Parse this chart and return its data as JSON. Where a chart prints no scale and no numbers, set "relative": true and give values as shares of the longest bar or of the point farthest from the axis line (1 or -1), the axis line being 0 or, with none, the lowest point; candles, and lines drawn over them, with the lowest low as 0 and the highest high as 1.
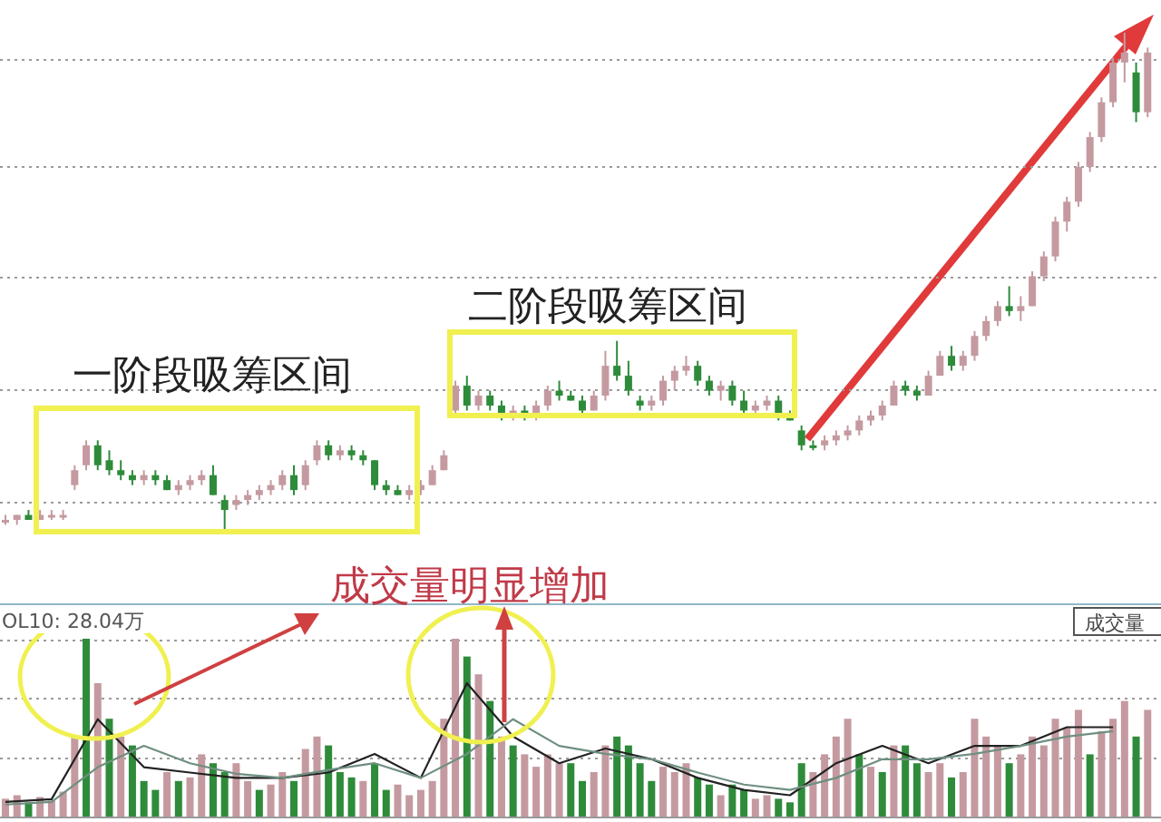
{
  "chart_data": [
    {
      "type": "candlestick",
      "relative": true,
      "categories": [
        null,
        null,
        null,
        null,
        null,
        null,
        null,
        null,
        null,
        null,
        null,
        null,
        null,
        null,
        null,
        null,
        null,
        null,
        null,
        null,
        null,
        null,
        null,
        null,
        null,
        null,
        null,
        null,
        null,
        null,
        null,
        null,
        null,
        null,
        null,
        null,
        null,
        null,
        null,
        null,
        null,
        null,
        null,
        null,
        null,
        null,
        null,
        null,
        null,
        null,
        null,
        null,
        null,
        null,
        null,
        null,
        null,
        null,
        null,
        null,
        null,
        null,
        null,
        null,
        null,
        null,
        null,
        null,
        null,
        null,
        null,
        null,
        null,
        null,
        null,
        null,
        null,
        null,
        null,
        null,
        null,
        null,
        null,
        null,
        null,
        null,
        null,
        null,
        null,
        null,
        null,
        null,
        null,
        null,
        null,
        null,
        null,
        null,
        null,
        null
      ],
      "ohlc": [
        [
          0.02,
          0.03,
          0.01,
          0.02
        ],
        [
          0.02,
          0.03,
          0.01,
          0.03
        ],
        [
          0.03,
          0.04,
          0.02,
          0.02
        ],
        [
          0.02,
          0.04,
          0.02,
          0.03
        ],
        [
          0.03,
          0.04,
          0.02,
          0.03
        ],
        [
          0.03,
          0.04,
          0.02,
          0.03
        ],
        [
          0.09,
          0.13,
          0.08,
          0.12
        ],
        [
          0.13,
          0.18,
          0.12,
          0.17
        ],
        [
          0.17,
          0.18,
          0.12,
          0.13
        ],
        [
          0.14,
          0.16,
          0.11,
          0.12
        ],
        [
          0.12,
          0.14,
          0.1,
          0.11
        ],
        [
          0.11,
          0.12,
          0.09,
          0.1
        ],
        [
          0.1,
          0.12,
          0.09,
          0.11
        ],
        [
          0.11,
          0.12,
          0.09,
          0.1
        ],
        [
          0.1,
          0.11,
          0.08,
          0.08
        ],
        [
          0.08,
          0.1,
          0.07,
          0.09
        ],
        [
          0.09,
          0.11,
          0.08,
          0.1
        ],
        [
          0.1,
          0.12,
          0.09,
          0.11
        ],
        [
          0.11,
          0.13,
          0.07,
          0.07
        ],
        [
          0.06,
          0.07,
          0.0,
          0.04
        ],
        [
          0.05,
          0.07,
          0.04,
          0.06
        ],
        [
          0.06,
          0.08,
          0.05,
          0.07
        ],
        [
          0.07,
          0.09,
          0.06,
          0.08
        ],
        [
          0.08,
          0.1,
          0.07,
          0.09
        ],
        [
          0.09,
          0.12,
          0.08,
          0.11
        ],
        [
          0.11,
          0.13,
          0.07,
          0.08
        ],
        [
          0.09,
          0.14,
          0.08,
          0.13
        ],
        [
          0.14,
          0.18,
          0.13,
          0.17
        ],
        [
          0.17,
          0.18,
          0.14,
          0.15
        ],
        [
          0.15,
          0.17,
          0.14,
          0.16
        ],
        [
          0.16,
          0.17,
          0.14,
          0.15
        ],
        [
          0.15,
          0.16,
          0.13,
          0.14
        ],
        [
          0.14,
          0.14,
          0.08,
          0.09
        ],
        [
          0.09,
          0.1,
          0.07,
          0.08
        ],
        [
          0.08,
          0.09,
          0.07,
          0.07
        ],
        [
          0.07,
          0.09,
          0.06,
          0.08
        ],
        [
          0.08,
          0.1,
          0.07,
          0.09
        ],
        [
          0.09,
          0.13,
          0.09,
          0.12
        ],
        [
          0.12,
          0.16,
          0.12,
          0.15
        ],
        [
          0.24,
          0.3,
          0.23,
          0.29
        ],
        [
          0.29,
          0.31,
          0.24,
          0.25
        ],
        [
          0.25,
          0.28,
          0.24,
          0.27
        ],
        [
          0.27,
          0.28,
          0.24,
          0.25
        ],
        [
          0.25,
          0.26,
          0.22,
          0.23
        ],
        [
          0.23,
          0.25,
          0.22,
          0.24
        ],
        [
          0.24,
          0.25,
          0.22,
          0.23
        ],
        [
          0.23,
          0.26,
          0.22,
          0.25
        ],
        [
          0.25,
          0.29,
          0.24,
          0.28
        ],
        [
          0.28,
          0.3,
          0.26,
          0.27
        ],
        [
          0.27,
          0.28,
          0.26,
          0.26
        ],
        [
          0.26,
          0.27,
          0.23,
          0.24
        ],
        [
          0.24,
          0.28,
          0.24,
          0.27
        ],
        [
          0.27,
          0.36,
          0.26,
          0.33
        ],
        [
          0.33,
          0.38,
          0.3,
          0.31
        ],
        [
          0.31,
          0.34,
          0.27,
          0.28
        ],
        [
          0.26,
          0.27,
          0.24,
          0.25
        ],
        [
          0.25,
          0.27,
          0.24,
          0.26
        ],
        [
          0.26,
          0.31,
          0.25,
          0.3
        ],
        [
          0.3,
          0.33,
          0.28,
          0.32
        ],
        [
          0.32,
          0.35,
          0.31,
          0.33
        ],
        [
          0.33,
          0.34,
          0.29,
          0.3
        ],
        [
          0.3,
          0.31,
          0.27,
          0.28
        ],
        [
          0.28,
          0.3,
          0.26,
          0.29
        ],
        [
          0.29,
          0.3,
          0.25,
          0.26
        ],
        [
          0.26,
          0.28,
          0.23,
          0.24
        ],
        [
          0.24,
          0.26,
          0.23,
          0.25
        ],
        [
          0.25,
          0.27,
          0.24,
          0.26
        ],
        [
          0.26,
          0.27,
          0.22,
          0.23
        ],
        [
          0.23,
          0.24,
          0.22,
          0.22
        ],
        [
          0.2,
          0.21,
          0.16,
          0.17
        ],
        [
          0.17,
          0.18,
          0.16,
          0.17
        ],
        [
          0.17,
          0.19,
          0.16,
          0.18
        ],
        [
          0.18,
          0.2,
          0.17,
          0.19
        ],
        [
          0.19,
          0.21,
          0.18,
          0.2
        ],
        [
          0.2,
          0.23,
          0.19,
          0.22
        ],
        [
          0.22,
          0.24,
          0.21,
          0.23
        ],
        [
          0.23,
          0.26,
          0.22,
          0.25
        ],
        [
          0.25,
          0.3,
          0.25,
          0.29
        ],
        [
          0.29,
          0.3,
          0.27,
          0.28
        ],
        [
          0.28,
          0.29,
          0.26,
          0.27
        ],
        [
          0.27,
          0.32,
          0.27,
          0.31
        ],
        [
          0.31,
          0.36,
          0.31,
          0.35
        ],
        [
          0.35,
          0.37,
          0.32,
          0.33
        ],
        [
          0.33,
          0.36,
          0.32,
          0.35
        ],
        [
          0.35,
          0.4,
          0.34,
          0.39
        ],
        [
          0.39,
          0.43,
          0.38,
          0.42
        ],
        [
          0.42,
          0.46,
          0.41,
          0.45
        ],
        [
          0.45,
          0.49,
          0.43,
          0.44
        ],
        [
          0.44,
          0.47,
          0.42,
          0.45
        ],
        [
          0.45,
          0.52,
          0.45,
          0.51
        ],
        [
          0.51,
          0.56,
          0.5,
          0.55
        ],
        [
          0.55,
          0.63,
          0.54,
          0.62
        ],
        [
          0.62,
          0.67,
          0.6,
          0.66
        ],
        [
          0.66,
          0.74,
          0.65,
          0.73
        ],
        [
          0.73,
          0.8,
          0.72,
          0.79
        ],
        [
          0.79,
          0.87,
          0.78,
          0.86
        ],
        [
          0.86,
          0.95,
          0.85,
          0.94
        ],
        [
          0.94,
          1.0,
          0.9,
          0.96
        ],
        [
          0.92,
          0.94,
          0.82,
          0.84
        ],
        [
          0.84,
          0.97,
          0.83,
          0.96
        ]
      ],
      "colors": [
        "#c49aa0",
        "#c49aa0",
        "#2e8b3a",
        "#c49aa0",
        "#c49aa0",
        "#c49aa0",
        "#c49aa0",
        "#c49aa0",
        "#2e8b3a",
        "#2e8b3a",
        "#2e8b3a",
        "#2e8b3a",
        "#c49aa0",
        "#2e8b3a",
        "#2e8b3a",
        "#c49aa0",
        "#c49aa0",
        "#c49aa0",
        "#2e8b3a",
        "#2e8b3a",
        "#c49aa0",
        "#c49aa0",
        "#c49aa0",
        "#c49aa0",
        "#c49aa0",
        "#2e8b3a",
        "#c49aa0",
        "#c49aa0",
        "#2e8b3a",
        "#c49aa0",
        "#2e8b3a",
        "#2e8b3a",
        "#2e8b3a",
        "#2e8b3a",
        "#2e8b3a",
        "#c49aa0",
        "#c49aa0",
        "#c49aa0",
        "#c49aa0",
        "#c49aa0",
        "#2e8b3a",
        "#c49aa0",
        "#2e8b3a",
        "#2e8b3a",
        "#c49aa0",
        "#2e8b3a",
        "#c49aa0",
        "#c49aa0",
        "#2e8b3a",
        "#2e8b3a",
        "#2e8b3a",
        "#c49aa0",
        "#c49aa0",
        "#2e8b3a",
        "#2e8b3a",
        "#2e8b3a",
        "#c49aa0",
        "#c49aa0",
        "#c49aa0",
        "#c49aa0",
        "#2e8b3a",
        "#2e8b3a",
        "#c49aa0",
        "#2e8b3a",
        "#2e8b3a",
        "#c49aa0",
        "#c49aa0",
        "#2e8b3a",
        "#2e8b3a",
        "#2e8b3a",
        "#2e8b3a",
        "#c49aa0",
        "#c49aa0",
        "#c49aa0",
        "#c49aa0",
        "#c49aa0",
        "#c49aa0",
        "#c49aa0",
        "#2e8b3a",
        "#2e8b3a",
        "#c49aa0",
        "#c49aa0",
        "#2e8b3a",
        "#c49aa0",
        "#c49aa0",
        "#c49aa0",
        "#c49aa0",
        "#2e8b3a",
        "#c49aa0",
        "#c49aa0",
        "#c49aa0",
        "#c49aa0",
        "#c49aa0",
        "#c49aa0",
        "#c49aa0",
        "#c49aa0",
        "#c49aa0",
        "#c49aa0",
        "#2e8b3a",
        "#c49aa0"
      ],
      "annotations": [
        "一阶段吸筹区间",
        "二阶段吸筹区间"
      ]
    },
    {
      "type": "bar",
      "relative": true,
      "categories": [
        null,
        null,
        null,
        null,
        null,
        null,
        null,
        null,
        null,
        null,
        null,
        null,
        null,
        null,
        null,
        null,
        null,
        null,
        null,
        null,
        null,
        null,
        null,
        null,
        null,
        null,
        null,
        null,
        null,
        null,
        null,
        null,
        null,
        null,
        null,
        null,
        null,
        null,
        null,
        null,
        null,
        null,
        null,
        null,
        null,
        null,
        null,
        null,
        null,
        null,
        null,
        null,
        null,
        null,
        null,
        null,
        null,
        null,
        null,
        null,
        null,
        null,
        null,
        null,
        null,
        null,
        null,
        null,
        null,
        null,
        null,
        null,
        null,
        null,
        null,
        null,
        null,
        null,
        null,
        null,
        null,
        null,
        null,
        null,
        null,
        null,
        null,
        null,
        null,
        null,
        null,
        null,
        null,
        null,
        null,
        null,
        null,
        null,
        null,
        null
      ],
      "values": [
        0.1,
        0.12,
        0.08,
        0.11,
        0.09,
        0.14,
        0.45,
        1.0,
        0.75,
        0.55,
        0.45,
        0.4,
        0.2,
        0.15,
        0.25,
        0.2,
        0.22,
        0.35,
        0.3,
        0.25,
        0.3,
        0.2,
        0.15,
        0.18,
        0.25,
        0.2,
        0.38,
        0.45,
        0.4,
        0.25,
        0.22,
        0.2,
        0.3,
        0.15,
        0.18,
        0.12,
        0.15,
        0.2,
        0.55,
        1.0,
        0.9,
        0.8,
        0.65,
        0.45,
        0.4,
        0.35,
        0.28,
        0.35,
        0.3,
        0.3,
        0.2,
        0.25,
        0.4,
        0.45,
        0.4,
        0.3,
        0.2,
        0.28,
        0.25,
        0.3,
        0.22,
        0.18,
        0.12,
        0.18,
        0.15,
        0.1,
        0.12,
        0.1,
        0.08,
        0.3,
        0.25,
        0.35,
        0.45,
        0.55,
        0.35,
        0.28,
        0.25,
        0.4,
        0.4,
        0.3,
        0.25,
        0.3,
        0.22,
        0.25,
        0.55,
        0.45,
        0.4,
        0.3,
        0.35,
        0.45,
        0.4,
        0.55,
        0.5,
        0.6,
        0.35,
        0.48,
        0.55,
        0.65,
        0.45,
        0.6
      ],
      "colors": [
        "#c49aa0",
        "#c49aa0",
        "#2e8b3a",
        "#c49aa0",
        "#c49aa0",
        "#c49aa0",
        "#c49aa0",
        "#2e8b3a",
        "#c49aa0",
        "#2e8b3a",
        "#c49aa0",
        "#2e8b3a",
        "#2e8b3a",
        "#2e8b3a",
        "#c49aa0",
        "#2e8b3a",
        "#c49aa0",
        "#c49aa0",
        "#2e8b3a",
        "#2e8b3a",
        "#c49aa0",
        "#c49aa0",
        "#2e8b3a",
        "#c49aa0",
        "#c49aa0",
        "#2e8b3a",
        "#c49aa0",
        "#c49aa0",
        "#2e8b3a",
        "#2e8b3a",
        "#2e8b3a",
        "#c49aa0",
        "#2e8b3a",
        "#2e8b3a",
        "#c49aa0",
        "#c49aa0",
        "#c49aa0",
        "#c49aa0",
        "#c49aa0",
        "#c49aa0",
        "#2e8b3a",
        "#c49aa0",
        "#2e8b3a",
        "#c49aa0",
        "#2e8b3a",
        "#c49aa0",
        "#c49aa0",
        "#c49aa0",
        "#c49aa0",
        "#2e8b3a",
        "#2e8b3a",
        "#c49aa0",
        "#c49aa0",
        "#2e8b3a",
        "#2e8b3a",
        "#2e8b3a",
        "#2e8b3a",
        "#c49aa0",
        "#c49aa0",
        "#c49aa0",
        "#2e8b3a",
        "#2e8b3a",
        "#c49aa0",
        "#2e8b3a",
        "#2e8b3a",
        "#c49aa0",
        "#c49aa0",
        "#2e8b3a",
        "#2e8b3a",
        "#2e8b3a",
        "#c49aa0",
        "#c49aa0",
        "#c49aa0",
        "#c49aa0",
        "#2e8b3a",
        "#c49aa0",
        "#2e8b3a",
        "#c49aa0",
        "#2e8b3a",
        "#2e8b3a",
        "#c49aa0",
        "#c49aa0",
        "#2e8b3a",
        "#c49aa0",
        "#c49aa0",
        "#c49aa0",
        "#c49aa0",
        "#2e8b3a",
        "#c49aa0",
        "#c49aa0",
        "#c49aa0",
        "#c49aa0",
        "#c49aa0",
        "#c49aa0",
        "#2e8b3a",
        "#c49aa0",
        "#c49aa0",
        "#c49aa0",
        "#2e8b3a",
        "#c49aa0"
      ],
      "annotations": [
        "成交量明显增加",
        "OL10: 28.04万",
        "成交量"
      ]
    },
    {
      "type": "line",
      "relative": true,
      "categories": [
        null,
        null,
        null,
        null,
        null,
        null,
        null,
        null,
        null,
        null,
        null,
        null,
        null,
        null,
        null,
        null,
        null,
        null,
        null,
        null,
        null,
        null,
        null,
        null,
        null
      ],
      "series": [
        {
          "color": "#222222",
          "values": [
            0.11,
            0.13,
            0.73,
            0.37,
            0.33,
            0.29,
            0.29,
            0.33,
            0.47,
            0.29,
            1.0,
            0.6,
            0.4,
            0.51,
            0.43,
            0.29,
            0.2,
            0.16,
            0.4,
            0.53,
            0.4,
            0.53,
            0.53,
            0.67,
            0.67
          ]
        },
        {
          "color": "#6f8f80",
          "values": [
            0.09,
            0.11,
            0.37,
            0.53,
            0.4,
            0.32,
            0.29,
            0.35,
            0.4,
            0.29,
            0.47,
            0.73,
            0.53,
            0.47,
            0.43,
            0.33,
            0.24,
            0.2,
            0.29,
            0.43,
            0.43,
            0.47,
            0.53,
            0.6,
            0.64
          ]
        }
      ]
    }
  ]
}
